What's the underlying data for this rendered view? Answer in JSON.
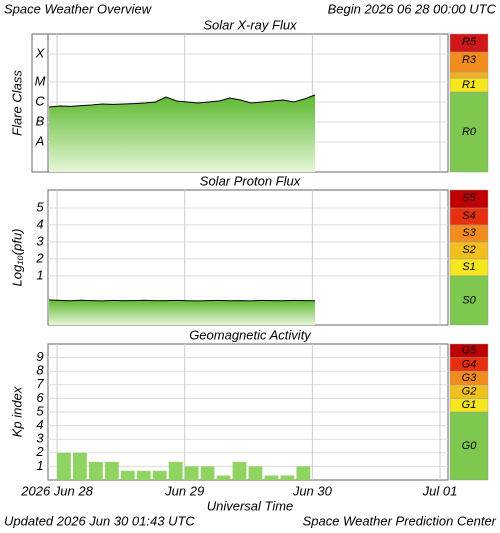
{
  "header": {
    "title": "Space Weather Overview",
    "begin": "Begin 2026 06 28 00:00 UTC"
  },
  "chart_data": [
    {
      "type": "line",
      "title": "Solar X-ray Flux",
      "ylabel": "Flare Class",
      "xlim": [
        -1.7,
        73.5
      ],
      "xticks": [
        0,
        24,
        48,
        72
      ],
      "ylim": [
        -9,
        -2.1
      ],
      "yticks": [
        {
          "value": -7.5,
          "label": "A"
        },
        {
          "value": -6.5,
          "label": "B"
        },
        {
          "value": -5.5,
          "label": "C"
        },
        {
          "value": -4.5,
          "label": "M"
        },
        {
          "value": -3.1,
          "label": "X"
        }
      ],
      "bands": [
        {
          "label": "R0",
          "from": -9,
          "to": -5,
          "color": "#7ec850"
        },
        {
          "label": "R1",
          "from": -5,
          "to": -4.3,
          "color": "#f5e61e"
        },
        {
          "from": -4.3,
          "to": -4,
          "color": "#f2b01e"
        },
        {
          "label": "R3",
          "from": -4,
          "to": -3,
          "color": "#f28c1e"
        },
        {
          "label": "R5",
          "from": -3,
          "to": -2.1,
          "color": "#d01818"
        }
      ],
      "x": [
        -1.5,
        0.5,
        2.5,
        4.5,
        6.5,
        8.5,
        10.5,
        12.5,
        14.5,
        16.5,
        18.5,
        20.5,
        22.5,
        24.5,
        26.5,
        28.5,
        30.5,
        32.5,
        34.5,
        36.5,
        38.5,
        40.5,
        42.5,
        44.5,
        46.5,
        48.5
      ],
      "series": [
        {
          "color": "#000000",
          "values": [
            -5.75,
            -5.7,
            -5.72,
            -5.68,
            -5.65,
            -5.6,
            -5.62,
            -5.6,
            -5.58,
            -5.55,
            -5.5,
            -5.25,
            -5.45,
            -5.5,
            -5.55,
            -5.5,
            -5.45,
            -5.3,
            -5.4,
            -5.55,
            -5.5,
            -5.45,
            -5.4,
            -5.5,
            -5.35,
            -5.15
          ]
        }
      ]
    },
    {
      "type": "line",
      "title": "Solar Proton Flux",
      "ylabel": "Log₁₀(pfu)",
      "xlim": [
        -1.7,
        73.5
      ],
      "xticks": [
        0,
        24,
        48,
        72
      ],
      "ylim": [
        -1.9,
        6.06
      ],
      "yticks": [
        1,
        2,
        3,
        4,
        5
      ],
      "bands": [
        {
          "label": "S0",
          "from": -1.9,
          "to": 1,
          "color": "#7ec850"
        },
        {
          "label": "S1",
          "from": 1,
          "to": 2,
          "color": "#f5e61e"
        },
        {
          "label": "S2",
          "from": 2,
          "to": 3,
          "color": "#f2c01e"
        },
        {
          "label": "S3",
          "from": 3,
          "to": 4,
          "color": "#f28c1e"
        },
        {
          "label": "S4",
          "from": 4,
          "to": 5,
          "color": "#e83010"
        },
        {
          "label": "S5",
          "from": 5,
          "to": 6.06,
          "color": "#c00000"
        }
      ],
      "x": [
        -1.5,
        0.5,
        2.5,
        4.5,
        6.5,
        8.5,
        10.5,
        12.5,
        14.5,
        16.5,
        18.5,
        20.5,
        22.5,
        24.5,
        26.5,
        28.5,
        30.5,
        32.5,
        34.5,
        36.5,
        38.5,
        40.5,
        42.5,
        44.5,
        46.5,
        48.5
      ],
      "series": [
        {
          "color": "#000000",
          "values": [
            -0.42,
            -0.45,
            -0.47,
            -0.44,
            -0.46,
            -0.48,
            -0.45,
            -0.47,
            -0.46,
            -0.44,
            -0.47,
            -0.46,
            -0.45,
            -0.47,
            -0.48,
            -0.46,
            -0.45,
            -0.47,
            -0.46,
            -0.48,
            -0.45,
            -0.46,
            -0.47,
            -0.45,
            -0.46,
            -0.47
          ]
        }
      ]
    },
    {
      "type": "bar",
      "title": "Geomagnetic Activity",
      "ylabel": "Kp index",
      "xlabel": "Universal Time",
      "xlim": [
        -1.7,
        73.5
      ],
      "xticks": [
        {
          "value": 0,
          "label": "2026 Jun 28"
        },
        {
          "value": 24,
          "label": "Jun 29"
        },
        {
          "value": 48,
          "label": "Jun 30"
        },
        {
          "value": 72,
          "label": "Jul 01"
        }
      ],
      "ylim": [
        0,
        10
      ],
      "yticks": [
        1,
        2,
        3,
        4,
        5,
        6,
        7,
        8,
        9
      ],
      "bands": [
        {
          "label": "G0",
          "from": 0,
          "to": 5,
          "color": "#7ec850"
        },
        {
          "label": "G1",
          "from": 5,
          "to": 6,
          "color": "#f5e61e"
        },
        {
          "label": "G2",
          "from": 6,
          "to": 7,
          "color": "#f2c01e"
        },
        {
          "label": "G3",
          "from": 7,
          "to": 8,
          "color": "#f28c1e"
        },
        {
          "label": "G4",
          "from": 8,
          "to": 9,
          "color": "#e83010"
        },
        {
          "label": "G5",
          "from": 9,
          "to": 10,
          "color": "#c00000"
        }
      ],
      "x": [
        0,
        3,
        6,
        9,
        12,
        15,
        18,
        21,
        24,
        27,
        30,
        33,
        36,
        39,
        42,
        45
      ],
      "color": "#8fd460",
      "values": [
        2,
        2,
        1.33,
        1.33,
        0.67,
        0.67,
        0.67,
        1.33,
        1,
        1,
        0.33,
        1.33,
        1,
        0.33,
        0.33,
        1
      ]
    }
  ],
  "footer": {
    "updated": "Updated 2026 Jun 30 01:43 UTC",
    "source": "Space Weather Prediction Center"
  }
}
